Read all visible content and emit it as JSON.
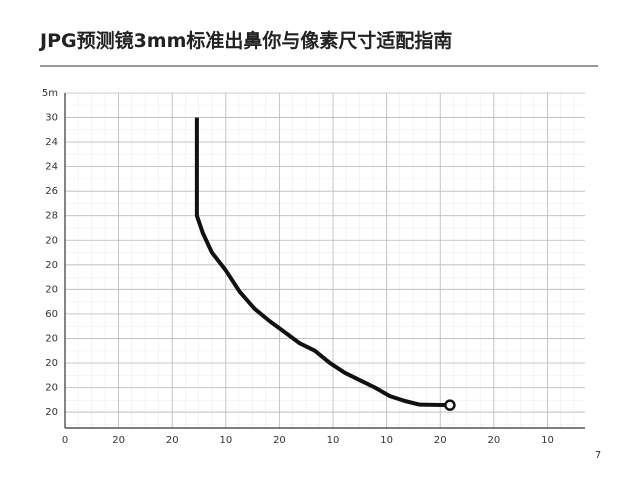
{
  "chart_data": {
    "type": "line",
    "title": "JPG预测镜3mm标准出鼻你与像素尺寸适配指南",
    "page_number": "7",
    "x": [
      2.46,
      2.46,
      2.57,
      2.74,
      2.99,
      3.26,
      3.54,
      3.82,
      4.1,
      4.38,
      4.66,
      4.94,
      5.22,
      5.5,
      5.78,
      6.06,
      6.34,
      6.62,
      7.18
    ],
    "series": [
      {
        "color": "#111111",
        "values": [
          12.0,
          8.0,
          7.3,
          6.5,
          5.8,
          4.9,
          4.2,
          3.7,
          3.25,
          2.8,
          2.5,
          2.0,
          1.6,
          1.3,
          1.0,
          0.65,
          0.45,
          0.3,
          0.28
        ]
      }
    ],
    "xlim": [
      0,
      9.7
    ],
    "ylim": [
      -0.65,
      13
    ],
    "xticks": [
      {
        "value": 0,
        "label": "0"
      },
      {
        "value": 1,
        "label": "20"
      },
      {
        "value": 2,
        "label": "20"
      },
      {
        "value": 3,
        "label": "10"
      },
      {
        "value": 4,
        "label": "20"
      },
      {
        "value": 5,
        "label": "10"
      },
      {
        "value": 6,
        "label": "10"
      },
      {
        "value": 7,
        "label": "20"
      },
      {
        "value": 8,
        "label": "20"
      },
      {
        "value": 9,
        "label": "10"
      }
    ],
    "yticks": [
      {
        "value": 0,
        "label": "20"
      },
      {
        "value": 1,
        "label": "20"
      },
      {
        "value": 2,
        "label": "20"
      },
      {
        "value": 3,
        "label": "20"
      },
      {
        "value": 4,
        "label": "60"
      },
      {
        "value": 5,
        "label": "20"
      },
      {
        "value": 6,
        "label": "20"
      },
      {
        "value": 7,
        "label": "20"
      },
      {
        "value": 8,
        "label": "28"
      },
      {
        "value": 9,
        "label": "26"
      },
      {
        "value": 10,
        "label": "24"
      },
      {
        "value": 11,
        "label": "24"
      },
      {
        "value": 12,
        "label": "30"
      },
      {
        "value": 13,
        "label": "5m"
      }
    ],
    "grid": true
  }
}
